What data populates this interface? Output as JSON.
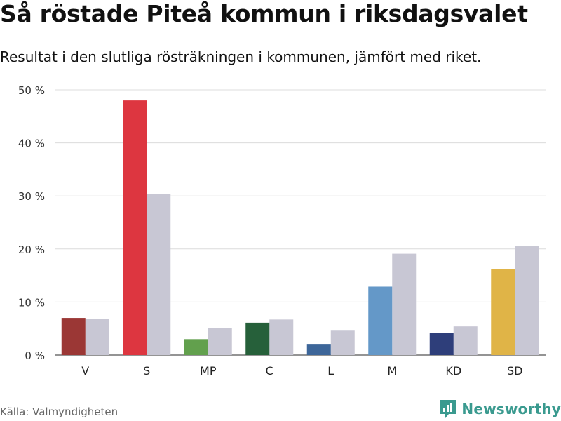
{
  "header": {
    "title": "Så röstade Piteå kommun i riksdagsvalet",
    "subtitle": "Resultat i den slutliga rösträkningen i kommunen, jämfört med riket."
  },
  "footer": {
    "source": "Källa: Valmyndigheten",
    "brand": "Newsworthy"
  },
  "chart_data": {
    "type": "bar",
    "categories": [
      "V",
      "S",
      "MP",
      "C",
      "L",
      "M",
      "KD",
      "SD"
    ],
    "series": [
      {
        "values": [
          7.0,
          48.0,
          3.0,
          6.1,
          2.1,
          12.9,
          4.1,
          16.2
        ],
        "colors": [
          "#9b3735",
          "#dd3640",
          "#62a04d",
          "#26603a",
          "#3d6699",
          "#6498c8",
          "#2e3e7a",
          "#e0b447"
        ]
      },
      {
        "values": [
          6.8,
          30.3,
          5.1,
          6.7,
          4.6,
          19.1,
          5.4,
          20.5
        ],
        "color": "#c8c7d4"
      }
    ],
    "y_ticks": [
      "0 %",
      "10 %",
      "20 %",
      "30 %",
      "40 %",
      "50 %"
    ],
    "ylim": [
      0,
      50
    ],
    "grid": true,
    "legend": "none"
  }
}
